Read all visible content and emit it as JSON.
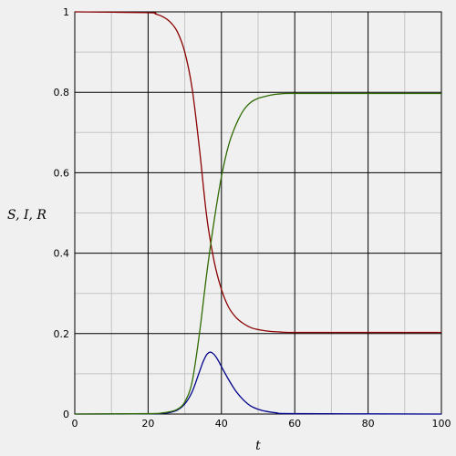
{
  "chart_data": {
    "type": "line",
    "xlabel": "t",
    "ylabel": "S, I, R",
    "xlim": [
      0,
      100
    ],
    "ylim": [
      0,
      1
    ],
    "x_ticks": [
      0,
      20,
      40,
      60,
      80,
      100
    ],
    "y_ticks": [
      0,
      0.2,
      0.4,
      0.6,
      0.8,
      1
    ],
    "x_tick_labels": [
      "0",
      "20",
      "40",
      "60",
      "80",
      "100"
    ],
    "y_tick_labels": [
      "0",
      "0.2",
      "0.4",
      "0.6",
      "0.8",
      "1"
    ],
    "grid": true,
    "background": "#f0f0f0",
    "series": [
      {
        "color": "#8b0000",
        "x": [
          0,
          20,
          22,
          24,
          26,
          28,
          30,
          32,
          34,
          36,
          38,
          40,
          42,
          44,
          46,
          48,
          50,
          52,
          54,
          56,
          58,
          60,
          70,
          80,
          100
        ],
        "y": [
          1,
          0.998,
          0.995,
          0.988,
          0.975,
          0.95,
          0.9,
          0.81,
          0.66,
          0.49,
          0.38,
          0.31,
          0.265,
          0.24,
          0.225,
          0.215,
          0.21,
          0.207,
          0.205,
          0.204,
          0.203,
          0.203,
          0.203,
          0.203,
          0.203
        ]
      },
      {
        "color": "#00008b",
        "x": [
          0,
          20,
          24,
          26,
          28,
          30,
          32,
          34,
          35,
          36,
          37,
          38,
          39,
          40,
          42,
          44,
          46,
          48,
          50,
          52,
          55,
          60,
          100
        ],
        "y": [
          0,
          0.0005,
          0.002,
          0.004,
          0.01,
          0.025,
          0.055,
          0.105,
          0.13,
          0.148,
          0.154,
          0.148,
          0.135,
          0.118,
          0.085,
          0.056,
          0.035,
          0.02,
          0.012,
          0.007,
          0.003,
          0.001,
          0
        ]
      },
      {
        "color": "#2e6b00",
        "x": [
          0,
          20,
          24,
          26,
          28,
          30,
          32,
          34,
          36,
          38,
          40,
          42,
          44,
          46,
          48,
          50,
          52,
          54,
          56,
          58,
          60,
          70,
          80,
          100
        ],
        "y": [
          0,
          0.001,
          0.003,
          0.006,
          0.012,
          0.03,
          0.08,
          0.2,
          0.35,
          0.48,
          0.59,
          0.67,
          0.72,
          0.755,
          0.775,
          0.785,
          0.79,
          0.794,
          0.796,
          0.797,
          0.797,
          0.797,
          0.797,
          0.797
        ]
      }
    ]
  }
}
